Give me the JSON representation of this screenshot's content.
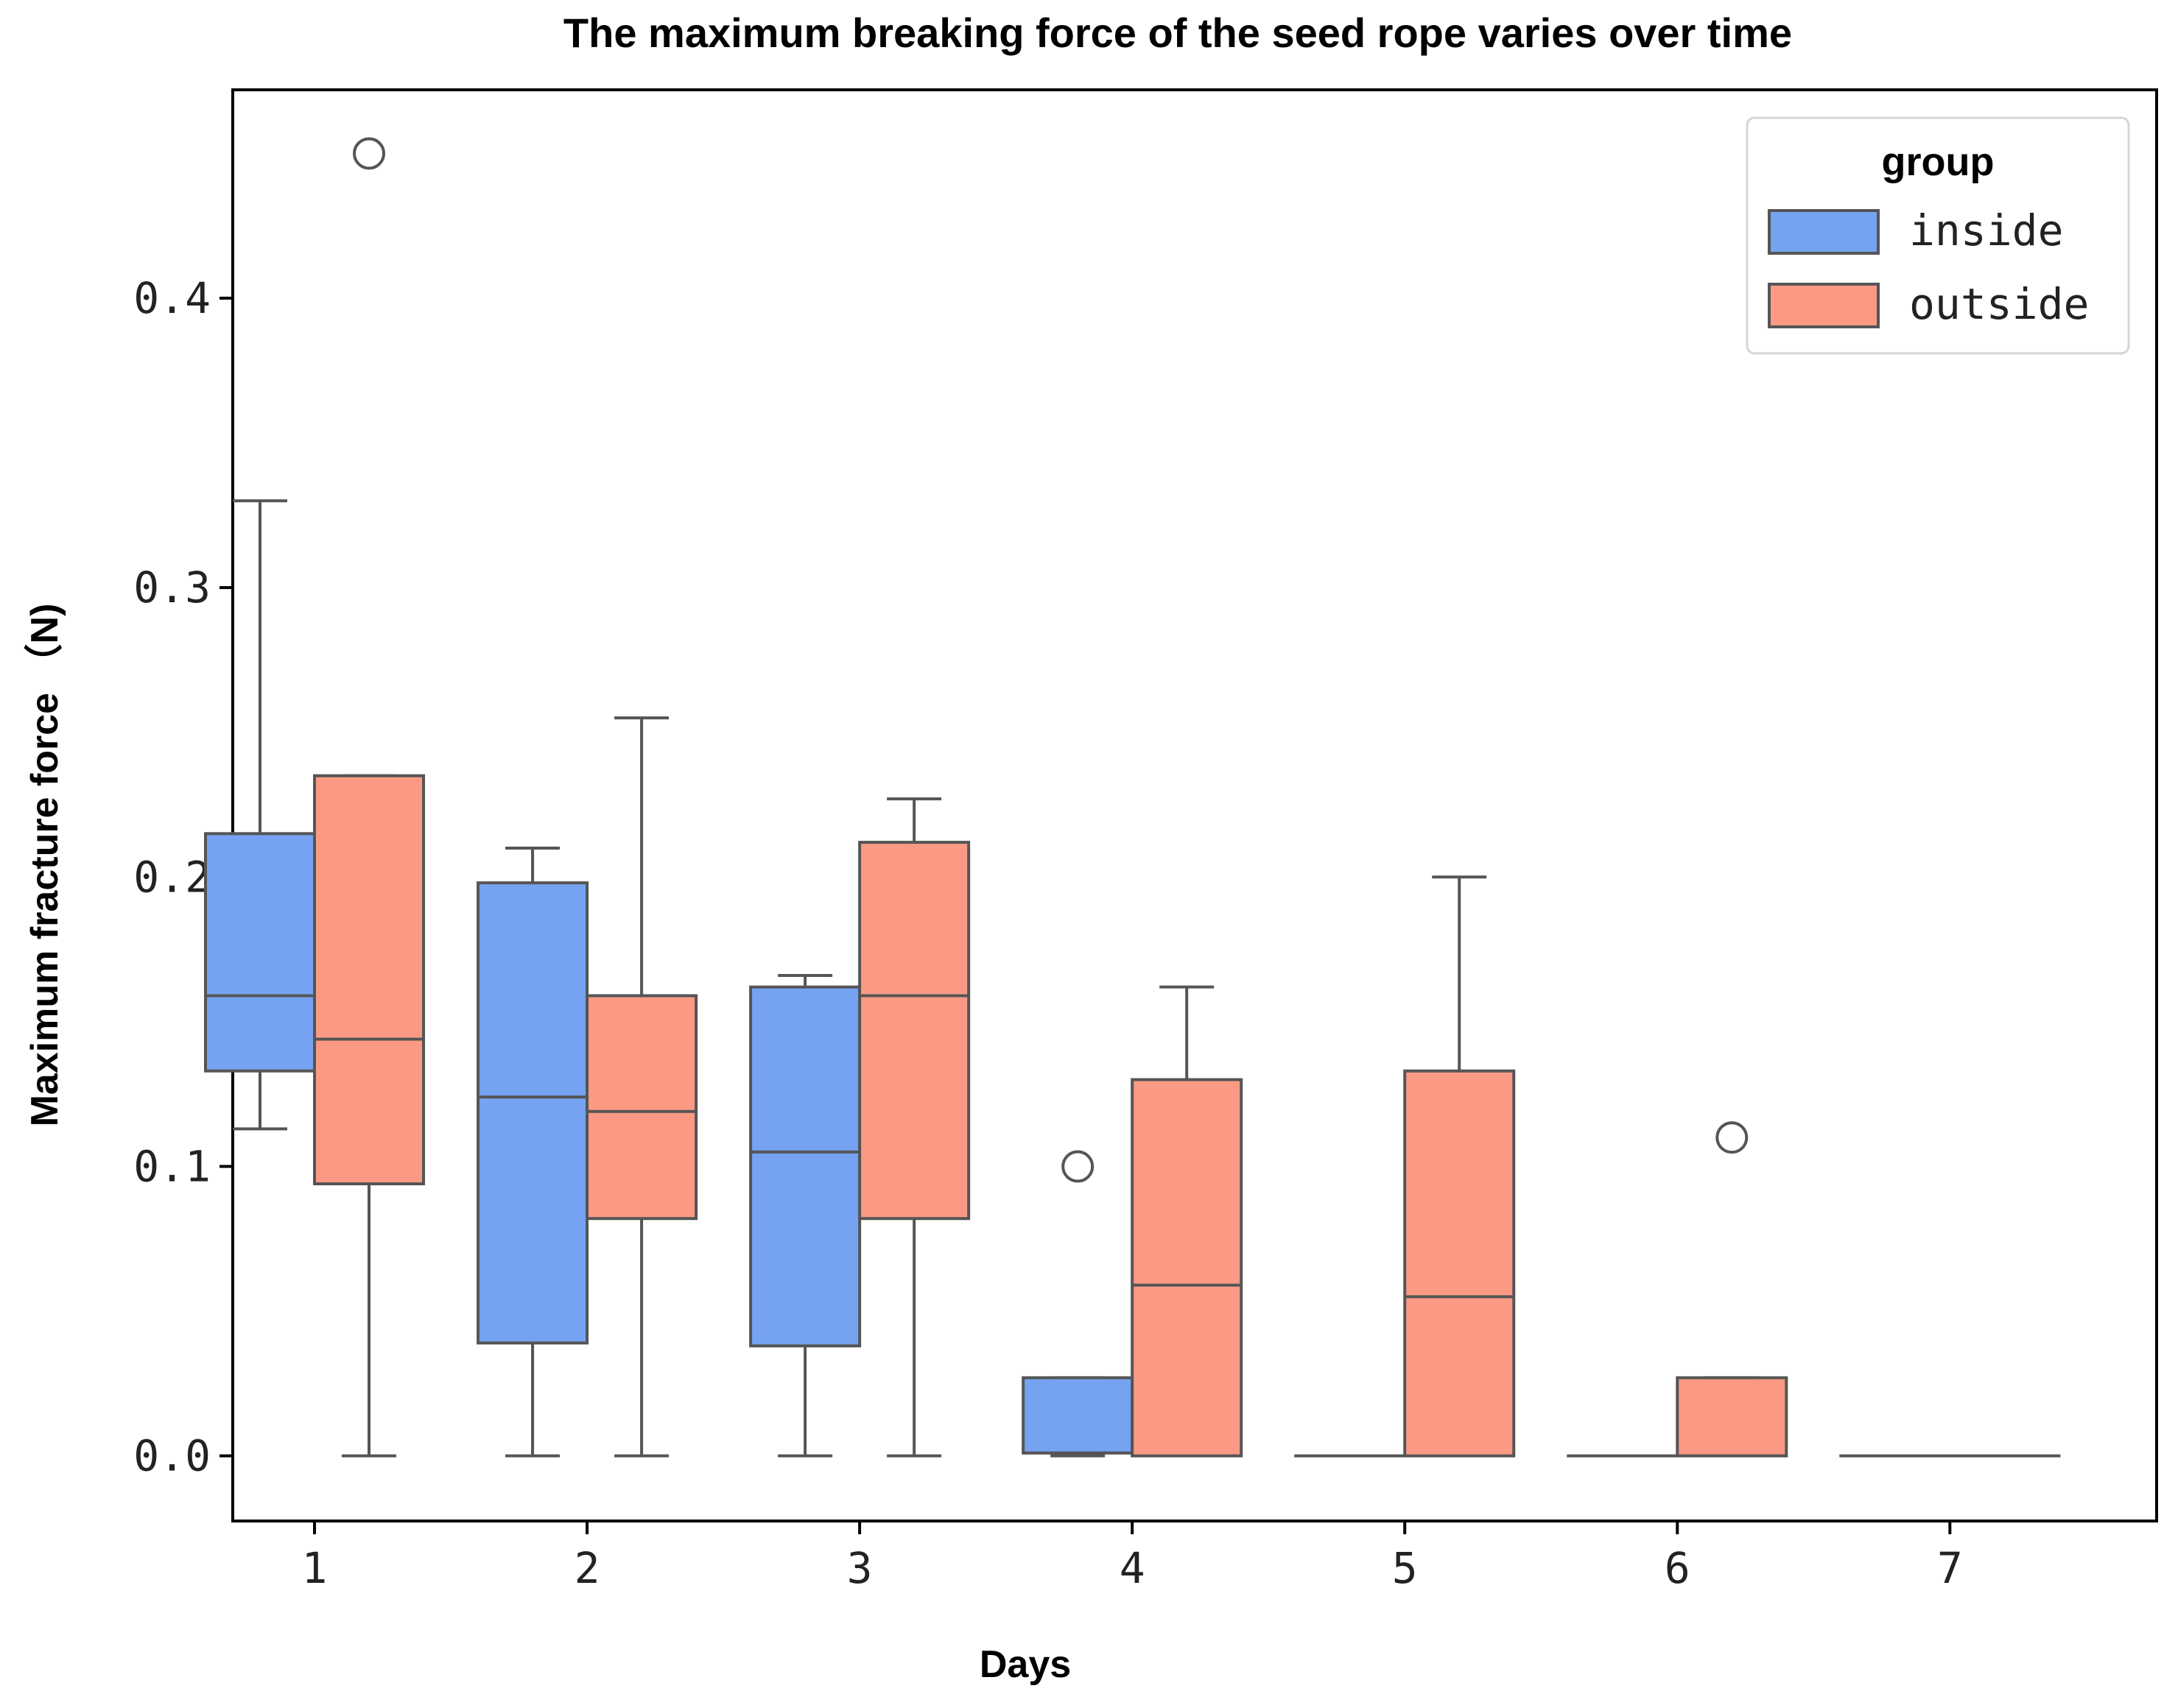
{
  "chart_data": {
    "type": "box",
    "title": "The maximum breaking force of the seed rope varies over time",
    "xlabel": "Days",
    "ylabel": "Maximum fracture force （N)",
    "categories": [
      "1",
      "2",
      "3",
      "4",
      "5",
      "6",
      "7"
    ],
    "ylim": [
      -0.0225,
      0.472
    ],
    "yticks": [
      0.0,
      0.1,
      0.2,
      0.3,
      0.4
    ],
    "ytick_labels": [
      "0.0",
      "0.1",
      "0.2",
      "0.3",
      "0.4"
    ],
    "legend": {
      "title": "group",
      "position": "top-right",
      "entries": [
        "inside",
        "outside"
      ]
    },
    "series": [
      {
        "name": "inside",
        "color": "#75a3f2",
        "boxes": [
          {
            "min": 0.113,
            "q1": 0.133,
            "median": 0.159,
            "q3": 0.215,
            "max": 0.33,
            "outliers": []
          },
          {
            "min": 0.0,
            "q1": 0.039,
            "median": 0.124,
            "q3": 0.198,
            "max": 0.21,
            "outliers": []
          },
          {
            "min": 0.0,
            "q1": 0.038,
            "median": 0.105,
            "q3": 0.162,
            "max": 0.166,
            "outliers": []
          },
          {
            "min": 0.0,
            "q1": 0.001,
            "median": 0.001,
            "q3": 0.027,
            "max": 0.027,
            "outliers": [
              0.1
            ]
          },
          {
            "min": 0.0,
            "q1": 0.0,
            "median": 0.0,
            "q3": 0.0,
            "max": 0.0,
            "outliers": []
          },
          {
            "min": 0.0,
            "q1": 0.0,
            "median": 0.0,
            "q3": 0.0,
            "max": 0.0,
            "outliers": []
          },
          {
            "min": 0.0,
            "q1": 0.0,
            "median": 0.0,
            "q3": 0.0,
            "max": 0.0,
            "outliers": []
          }
        ]
      },
      {
        "name": "outside",
        "color": "#fa9a85",
        "boxes": [
          {
            "min": 0.0,
            "q1": 0.094,
            "median": 0.144,
            "q3": 0.235,
            "max": 0.235,
            "outliers": [
              0.45
            ]
          },
          {
            "min": 0.0,
            "q1": 0.082,
            "median": 0.119,
            "q3": 0.159,
            "max": 0.255,
            "outliers": []
          },
          {
            "min": 0.0,
            "q1": 0.082,
            "median": 0.159,
            "q3": 0.212,
            "max": 0.227,
            "outliers": []
          },
          {
            "min": 0.0,
            "q1": 0.0,
            "median": 0.059,
            "q3": 0.13,
            "max": 0.162,
            "outliers": []
          },
          {
            "min": 0.0,
            "q1": 0.0,
            "median": 0.055,
            "q3": 0.133,
            "max": 0.2,
            "outliers": []
          },
          {
            "min": 0.0,
            "q1": 0.0,
            "median": 0.0,
            "q3": 0.027,
            "max": 0.027,
            "outliers": [
              0.11
            ]
          },
          {
            "min": 0.0,
            "q1": 0.0,
            "median": 0.0,
            "q3": 0.0,
            "max": 0.0,
            "outliers": []
          }
        ]
      }
    ]
  }
}
